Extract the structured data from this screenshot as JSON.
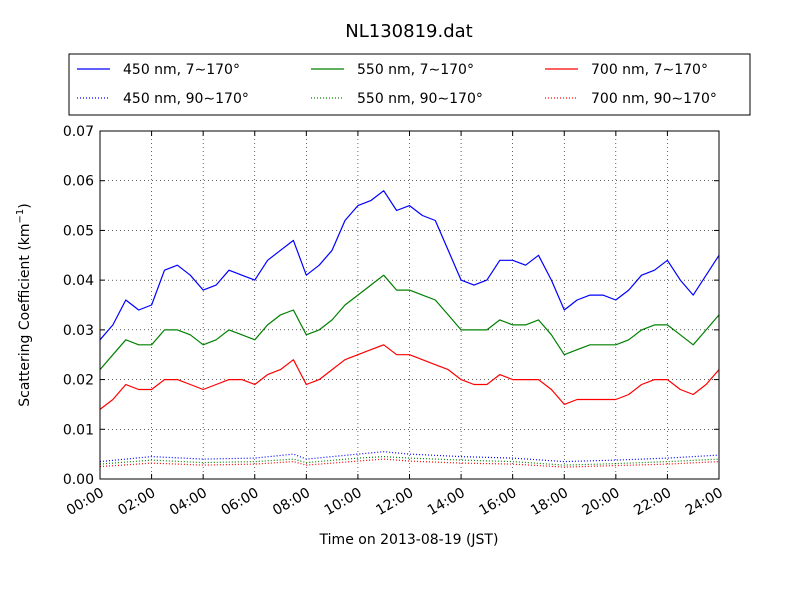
{
  "chart_data": {
    "type": "line",
    "title": "NL130819.dat",
    "xlabel": "Time on 2013-08-19 (JST)",
    "ylabel_main": "Scattering Coefficient (km",
    "ylabel_sup": "−1",
    "ylabel_close": ")",
    "xlim": [
      0,
      24
    ],
    "ylim": [
      0,
      0.07
    ],
    "grid": true,
    "legend_position": "top",
    "xticks": [
      0,
      2,
      4,
      6,
      8,
      10,
      12,
      14,
      16,
      18,
      20,
      22,
      24
    ],
    "xtick_labels": [
      "00:00",
      "02:00",
      "04:00",
      "06:00",
      "08:00",
      "10:00",
      "12:00",
      "14:00",
      "16:00",
      "18:00",
      "20:00",
      "22:00",
      "24:00"
    ],
    "yticks": [
      0,
      0.01,
      0.02,
      0.03,
      0.04,
      0.05,
      0.06,
      0.07
    ],
    "ytick_labels": [
      "0.00",
      "0.01",
      "0.02",
      "0.03",
      "0.04",
      "0.05",
      "0.06",
      "0.07"
    ],
    "series": [
      {
        "name": "450 nm, 7∼170°",
        "color": "#0000ff",
        "style": "solid",
        "x": [
          0,
          0.5,
          1,
          1.5,
          2,
          2.5,
          3,
          3.5,
          4,
          4.5,
          5,
          5.5,
          6,
          6.5,
          7,
          7.5,
          8,
          8.5,
          9,
          9.5,
          10,
          10.5,
          11,
          11.5,
          12,
          12.5,
          13,
          13.5,
          14,
          14.5,
          15,
          15.5,
          16,
          16.5,
          17,
          17.5,
          18,
          18.5,
          19,
          19.5,
          20,
          20.5,
          21,
          21.5,
          22,
          22.5,
          23,
          23.5,
          24
        ],
        "y": [
          0.028,
          0.031,
          0.036,
          0.034,
          0.035,
          0.042,
          0.043,
          0.041,
          0.038,
          0.039,
          0.042,
          0.041,
          0.04,
          0.044,
          0.046,
          0.048,
          0.041,
          0.043,
          0.046,
          0.052,
          0.055,
          0.056,
          0.058,
          0.054,
          0.055,
          0.053,
          0.052,
          0.046,
          0.04,
          0.039,
          0.04,
          0.044,
          0.044,
          0.043,
          0.045,
          0.04,
          0.034,
          0.036,
          0.037,
          0.037,
          0.036,
          0.038,
          0.041,
          0.042,
          0.044,
          0.04,
          0.037,
          0.041,
          0.045
        ]
      },
      {
        "name": "450 nm, 90∼170°",
        "color": "#0000ff",
        "style": "dotted",
        "x": [
          0,
          2,
          4,
          6,
          7.5,
          8,
          10,
          11,
          12,
          14,
          16,
          18,
          20,
          22,
          24
        ],
        "y": [
          0.0035,
          0.0045,
          0.004,
          0.0042,
          0.005,
          0.004,
          0.005,
          0.0055,
          0.005,
          0.0045,
          0.0042,
          0.0035,
          0.0038,
          0.0042,
          0.0048
        ]
      },
      {
        "name": "550 nm, 7∼170°",
        "color": "#008000",
        "style": "solid",
        "x": [
          0,
          0.5,
          1,
          1.5,
          2,
          2.5,
          3,
          3.5,
          4,
          4.5,
          5,
          5.5,
          6,
          6.5,
          7,
          7.5,
          8,
          8.5,
          9,
          9.5,
          10,
          10.5,
          11,
          11.5,
          12,
          12.5,
          13,
          13.5,
          14,
          14.5,
          15,
          15.5,
          16,
          16.5,
          17,
          17.5,
          18,
          18.5,
          19,
          19.5,
          20,
          20.5,
          21,
          21.5,
          22,
          22.5,
          23,
          23.5,
          24
        ],
        "y": [
          0.022,
          0.025,
          0.028,
          0.027,
          0.027,
          0.03,
          0.03,
          0.029,
          0.027,
          0.028,
          0.03,
          0.029,
          0.028,
          0.031,
          0.033,
          0.034,
          0.029,
          0.03,
          0.032,
          0.035,
          0.037,
          0.039,
          0.041,
          0.038,
          0.038,
          0.037,
          0.036,
          0.033,
          0.03,
          0.03,
          0.03,
          0.032,
          0.031,
          0.031,
          0.032,
          0.029,
          0.025,
          0.026,
          0.027,
          0.027,
          0.027,
          0.028,
          0.03,
          0.031,
          0.031,
          0.029,
          0.027,
          0.03,
          0.033
        ]
      },
      {
        "name": "550 nm, 90∼170°",
        "color": "#008000",
        "style": "dotted",
        "x": [
          0,
          2,
          4,
          6,
          7.5,
          8,
          10,
          11,
          12,
          14,
          16,
          18,
          20,
          22,
          24
        ],
        "y": [
          0.003,
          0.0038,
          0.0033,
          0.0035,
          0.004,
          0.0033,
          0.0042,
          0.0045,
          0.0042,
          0.0038,
          0.0035,
          0.0028,
          0.0031,
          0.0035,
          0.004
        ]
      },
      {
        "name": "700 nm, 7∼170°",
        "color": "#ff0000",
        "style": "solid",
        "x": [
          0,
          0.5,
          1,
          1.5,
          2,
          2.5,
          3,
          3.5,
          4,
          4.5,
          5,
          5.5,
          6,
          6.5,
          7,
          7.5,
          8,
          8.5,
          9,
          9.5,
          10,
          10.5,
          11,
          11.5,
          12,
          12.5,
          13,
          13.5,
          14,
          14.5,
          15,
          15.5,
          16,
          16.5,
          17,
          17.5,
          18,
          18.5,
          19,
          19.5,
          20,
          20.5,
          21,
          21.5,
          22,
          22.5,
          23,
          23.5,
          24
        ],
        "y": [
          0.014,
          0.016,
          0.019,
          0.018,
          0.018,
          0.02,
          0.02,
          0.019,
          0.018,
          0.019,
          0.02,
          0.02,
          0.019,
          0.021,
          0.022,
          0.024,
          0.019,
          0.02,
          0.022,
          0.024,
          0.025,
          0.026,
          0.027,
          0.025,
          0.025,
          0.024,
          0.023,
          0.022,
          0.02,
          0.019,
          0.019,
          0.021,
          0.02,
          0.02,
          0.02,
          0.018,
          0.015,
          0.016,
          0.016,
          0.016,
          0.016,
          0.017,
          0.019,
          0.02,
          0.02,
          0.018,
          0.017,
          0.019,
          0.022
        ]
      },
      {
        "name": "700 nm, 90∼170°",
        "color": "#ff0000",
        "style": "dotted",
        "x": [
          0,
          2,
          4,
          6,
          7.5,
          8,
          10,
          11,
          12,
          14,
          16,
          18,
          20,
          22,
          24
        ],
        "y": [
          0.0025,
          0.0032,
          0.0028,
          0.003,
          0.0035,
          0.0028,
          0.0036,
          0.004,
          0.0036,
          0.0032,
          0.003,
          0.0024,
          0.0027,
          0.003,
          0.0035
        ]
      }
    ]
  }
}
